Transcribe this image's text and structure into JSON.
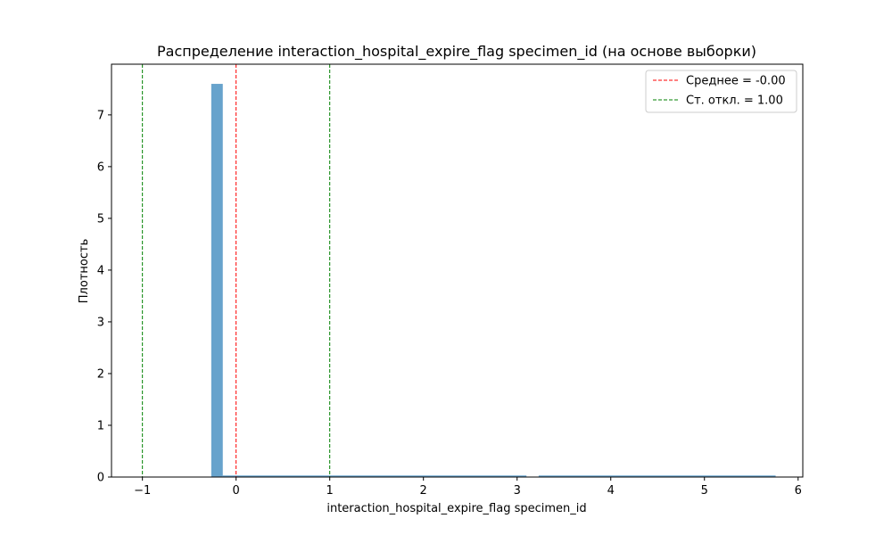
{
  "chart_data": {
    "type": "bar",
    "title": "Распределение interaction_hospital_expire_flag specimen_id (на основе выборки)",
    "xlabel": "interaction_hospital_expire_flag specimen_id",
    "ylabel": "Плотность",
    "xlim": [
      -1.33,
      6.05
    ],
    "ylim": [
      0,
      7.98
    ],
    "xticks": [
      -1,
      0,
      1,
      2,
      3,
      4,
      5,
      6
    ],
    "yticks": [
      0,
      1,
      2,
      3,
      4,
      5,
      6,
      7
    ],
    "bars": [
      {
        "x0": -0.265,
        "x1": -0.142,
        "value": 7.6
      },
      {
        "x0": -0.142,
        "x1": 3.1,
        "value": 0.03
      },
      {
        "x0": 3.23,
        "x1": 5.76,
        "value": 0.03
      }
    ],
    "bar_color": "#1f77b4",
    "grid": false,
    "legend_position": "top-right",
    "vlines": [
      {
        "x": -0.0,
        "color": "#ff0000",
        "style": "dashed",
        "label": "Среднее = -0.00"
      },
      {
        "x": 1.0,
        "color": "#008000",
        "style": "dashed",
        "label": "Ст. откл. = 1.00"
      },
      {
        "x": -1.0,
        "color": "#008000",
        "style": "dashed",
        "label": ""
      }
    ]
  }
}
